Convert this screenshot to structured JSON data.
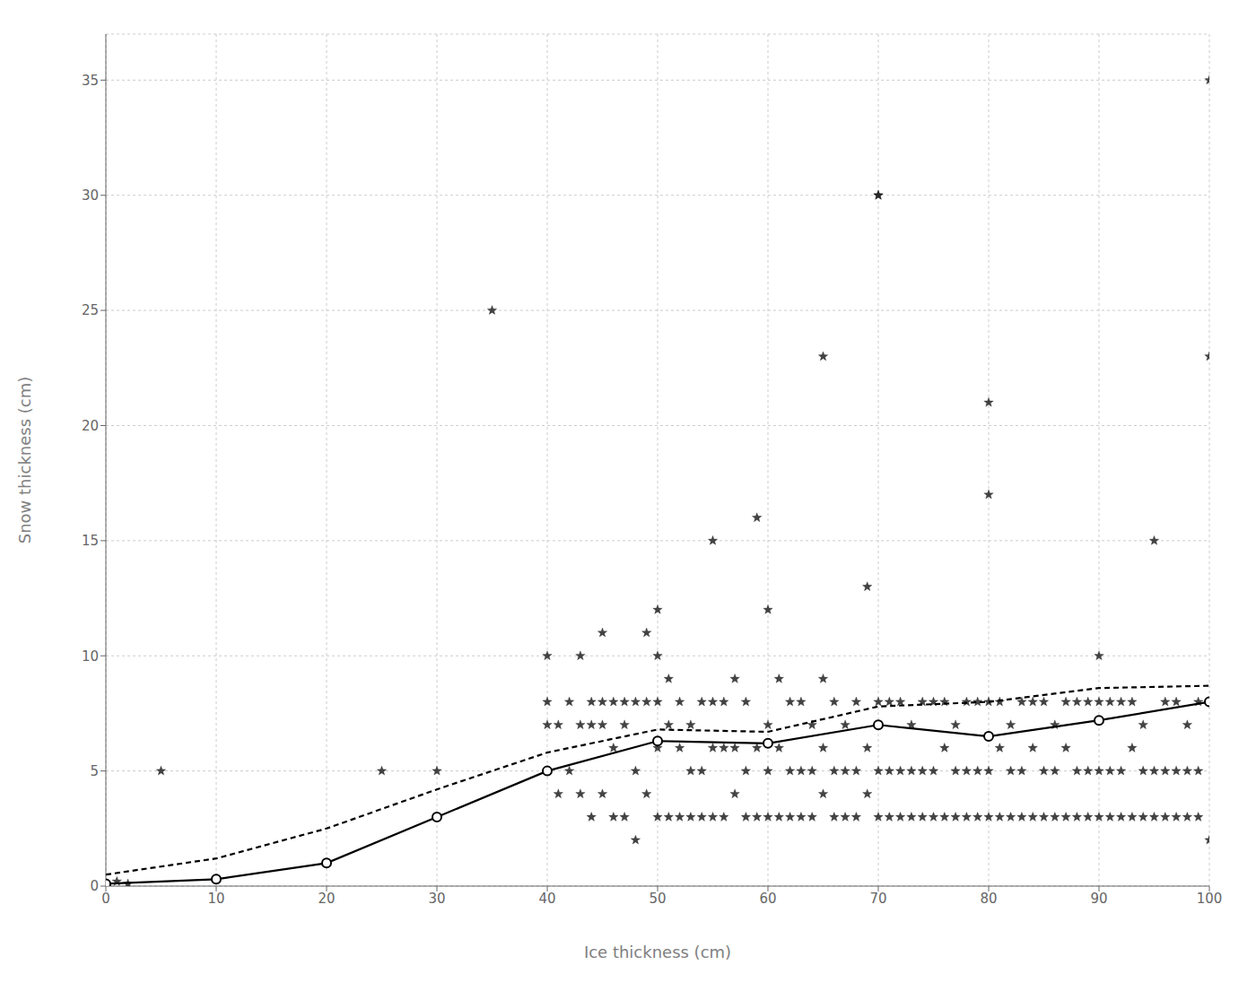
{
  "chart_data": {
    "type": "scatter",
    "xlabel": "Ice thickness (cm)",
    "ylabel": "Snow thickness (cm)",
    "xlim": [
      0,
      100
    ],
    "ylim": [
      0,
      37
    ],
    "xticks": [
      0,
      10,
      20,
      30,
      40,
      50,
      60,
      70,
      80,
      90,
      100
    ],
    "yticks": [
      0,
      5,
      10,
      15,
      20,
      25,
      30,
      35
    ],
    "grid": true,
    "series": [
      {
        "type": "scatter",
        "marker": "star",
        "color": "#222222",
        "x": [
          1,
          2,
          5,
          10,
          25,
          30,
          35,
          40,
          40,
          40,
          40,
          41,
          41,
          42,
          42,
          43,
          43,
          43,
          44,
          44,
          44,
          45,
          45,
          45,
          45,
          46,
          46,
          46,
          47,
          47,
          47,
          48,
          48,
          48,
          49,
          49,
          49,
          50,
          50,
          50,
          50,
          50,
          51,
          51,
          51,
          52,
          52,
          52,
          53,
          53,
          53,
          54,
          54,
          54,
          55,
          55,
          55,
          55,
          56,
          56,
          56,
          57,
          57,
          57,
          58,
          58,
          58,
          59,
          59,
          59,
          60,
          60,
          60,
          60,
          61,
          61,
          61,
          62,
          62,
          62,
          63,
          63,
          63,
          64,
          64,
          64,
          65,
          65,
          65,
          66,
          66,
          66,
          67,
          67,
          67,
          68,
          68,
          68,
          69,
          69,
          69,
          70,
          70,
          70,
          70,
          71,
          71,
          71,
          72,
          72,
          72,
          73,
          73,
          73,
          74,
          74,
          74,
          75,
          75,
          75,
          76,
          76,
          76,
          77,
          77,
          77,
          78,
          78,
          78,
          79,
          79,
          79,
          80,
          80,
          80,
          80,
          81,
          81,
          81,
          82,
          82,
          82,
          83,
          83,
          83,
          84,
          84,
          84,
          85,
          85,
          85,
          86,
          86,
          86,
          87,
          87,
          87,
          88,
          88,
          88,
          89,
          89,
          89,
          90,
          90,
          90,
          90,
          91,
          91,
          91,
          92,
          92,
          92,
          93,
          93,
          93,
          94,
          94,
          94,
          95,
          95,
          95,
          96,
          96,
          96,
          97,
          97,
          97,
          98,
          98,
          98,
          99,
          99,
          99,
          100,
          100,
          65,
          70,
          80,
          100,
          100
        ],
        "values": [
          0.2,
          0.1,
          5,
          0.3,
          5,
          5,
          25,
          5,
          7,
          8,
          10,
          4,
          7,
          5,
          8,
          4,
          7,
          10,
          3,
          7,
          8,
          4,
          7,
          8,
          11,
          3,
          6,
          8,
          3,
          7,
          8,
          2,
          5,
          8,
          4,
          8,
          11,
          3,
          6,
          8,
          10,
          12,
          3,
          7,
          9,
          3,
          6,
          8,
          3,
          5,
          7,
          3,
          5,
          8,
          3,
          6,
          8,
          15,
          3,
          6,
          8,
          4,
          6,
          9,
          3,
          5,
          8,
          3,
          6,
          16,
          3,
          5,
          7,
          12,
          3,
          6,
          9,
          3,
          5,
          8,
          3,
          5,
          8,
          3,
          5,
          7,
          4,
          6,
          9,
          3,
          5,
          8,
          3,
          5,
          7,
          3,
          5,
          8,
          4,
          6,
          13,
          3,
          5,
          8,
          30,
          3,
          5,
          8,
          3,
          5,
          8,
          3,
          5,
          7,
          3,
          5,
          8,
          3,
          5,
          8,
          3,
          6,
          8,
          3,
          5,
          7,
          3,
          5,
          8,
          3,
          5,
          8,
          3,
          5,
          8,
          21,
          3,
          6,
          8,
          3,
          5,
          7,
          3,
          5,
          8,
          3,
          6,
          8,
          3,
          5,
          8,
          3,
          5,
          7,
          3,
          6,
          8,
          3,
          5,
          8,
          3,
          5,
          8,
          3,
          5,
          8,
          10,
          3,
          5,
          8,
          3,
          5,
          8,
          3,
          6,
          8,
          3,
          5,
          7,
          3,
          5,
          15,
          3,
          5,
          8,
          3,
          5,
          8,
          3,
          5,
          7,
          3,
          5,
          8,
          2,
          8,
          23,
          30,
          17,
          35,
          23
        ]
      },
      {
        "type": "line",
        "line_style": "dashed",
        "color": "#000000",
        "x": [
          0,
          10,
          20,
          30,
          40,
          50,
          60,
          70,
          80,
          90,
          100
        ],
        "values": [
          0.5,
          1.2,
          2.5,
          4.2,
          5.8,
          6.8,
          6.7,
          7.8,
          8.0,
          8.6,
          8.7
        ]
      },
      {
        "type": "line",
        "line_style": "solid",
        "marker": "circle",
        "color": "#000000",
        "x": [
          0,
          10,
          20,
          30,
          40,
          50,
          60,
          70,
          80,
          90,
          100
        ],
        "values": [
          0.1,
          0.3,
          1.0,
          3.0,
          5.0,
          6.3,
          6.2,
          7.0,
          6.5,
          7.2,
          8.0
        ]
      }
    ]
  }
}
